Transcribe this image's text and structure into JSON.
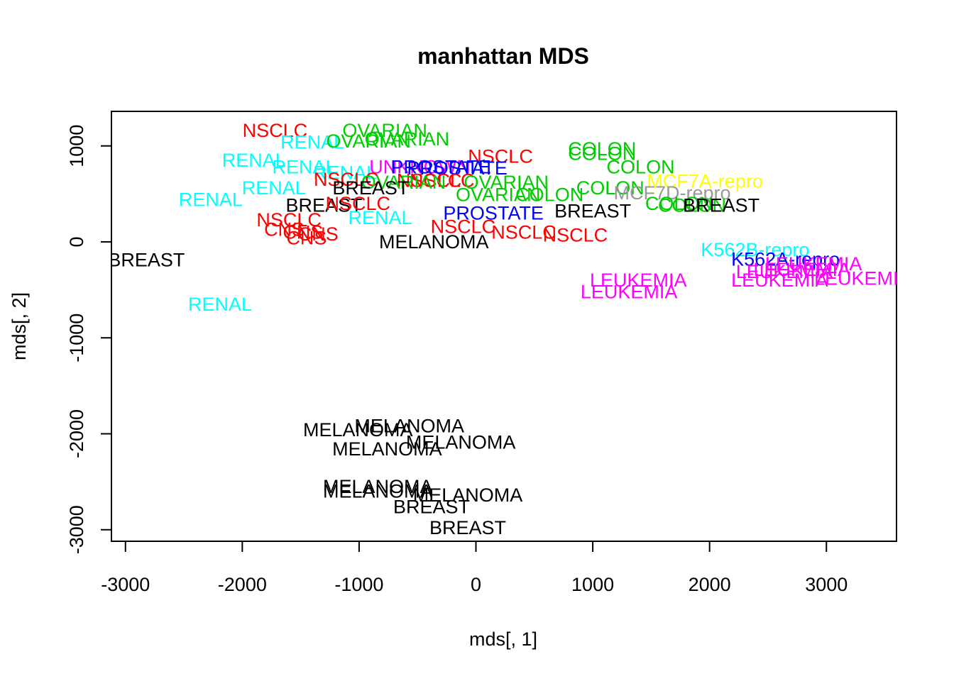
{
  "chart_data": {
    "type": "scatter",
    "title": "manhattan MDS",
    "xlabel": "mds[, 1]",
    "ylabel": "mds[, 2]",
    "xlim": [
      -3120,
      3600
    ],
    "ylim": [
      -3120,
      1360
    ],
    "xticks": [
      -3000,
      -2000,
      -1000,
      0,
      1000,
      2000,
      3000
    ],
    "yticks": [
      -3000,
      -2000,
      -1000,
      0,
      1000
    ],
    "xtick_labels": [
      "-3000",
      "-2000",
      "-1000",
      "0",
      "1000",
      "2000",
      "3000"
    ],
    "ytick_labels": [
      "-3000",
      "-2000",
      "-1000",
      "0",
      "1000"
    ],
    "grid": false,
    "legend": "none",
    "colors": {
      "BREAST": "#000000",
      "MELANOMA": "#000000",
      "NSCLC": "#ff0000",
      "CNS": "#ff0000",
      "RENAL": "#00ffff",
      "OVARIAN": "#00cd00",
      "COLON": "#00cd00",
      "UNKNOWN": "#ff00ff",
      "LEUKEMIA": "#ff00ff",
      "PROSTATE": "#0000ff",
      "K562A-repro": "#0000ff",
      "K562B-repro": "#00ffff",
      "MCF7A-repro": "#ffff00",
      "MCF7D-repro": "#999999"
    },
    "points": [
      {
        "label": "NSCLC",
        "x": -1720,
        "y": 1160
      },
      {
        "label": "OVARIAN",
        "x": -780,
        "y": 1160
      },
      {
        "label": "RENAL",
        "x": -1400,
        "y": 1040
      },
      {
        "label": "OVARIAN",
        "x": -920,
        "y": 1050
      },
      {
        "label": "OVARIAN",
        "x": -590,
        "y": 1070
      },
      {
        "label": "COLON",
        "x": 1080,
        "y": 970
      },
      {
        "label": "COLON",
        "x": 1080,
        "y": 920
      },
      {
        "label": "NSCLC",
        "x": 210,
        "y": 890
      },
      {
        "label": "RENAL",
        "x": -1900,
        "y": 850
      },
      {
        "label": "RENAL",
        "x": -1470,
        "y": 780
      },
      {
        "label": "RENAL",
        "x": -1120,
        "y": 720
      },
      {
        "label": "UNKNOWN",
        "x": -480,
        "y": 780
      },
      {
        "label": "PROSTATE",
        "x": -300,
        "y": 780
      },
      {
        "label": "PROSTATE",
        "x": -160,
        "y": 770
      },
      {
        "label": "COLON",
        "x": 1410,
        "y": 780
      },
      {
        "label": "NSCLC",
        "x": -1110,
        "y": 650
      },
      {
        "label": "NSCLC",
        "x": -400,
        "y": 640
      },
      {
        "label": "NSCLC",
        "x": -290,
        "y": 640
      },
      {
        "label": "OVARIAN",
        "x": -620,
        "y": 620
      },
      {
        "label": "OVARIAN",
        "x": 260,
        "y": 620
      },
      {
        "label": "MCF7A-repro",
        "x": 1960,
        "y": 630
      },
      {
        "label": "RENAL",
        "x": -1730,
        "y": 560
      },
      {
        "label": "BREAST",
        "x": -900,
        "y": 560
      },
      {
        "label": "COLON",
        "x": 1150,
        "y": 560
      },
      {
        "label": "OVARIAN",
        "x": 190,
        "y": 490
      },
      {
        "label": "COLON",
        "x": 630,
        "y": 490
      },
      {
        "label": "MCF7D-repro",
        "x": 1680,
        "y": 510
      },
      {
        "label": "COLON",
        "x": 1740,
        "y": 400
      },
      {
        "label": "COLON",
        "x": 1850,
        "y": 380
      },
      {
        "label": "RENAL",
        "x": -2270,
        "y": 440
      },
      {
        "label": "BREAST",
        "x": -1300,
        "y": 380
      },
      {
        "label": "NSCLC",
        "x": -1010,
        "y": 400
      },
      {
        "label": "BREAST",
        "x": 1000,
        "y": 320
      },
      {
        "label": "BREAST",
        "x": 2100,
        "y": 380
      },
      {
        "label": "PROSTATE",
        "x": 150,
        "y": 300
      },
      {
        "label": "RENAL",
        "x": -820,
        "y": 250
      },
      {
        "label": "NSCLC",
        "x": -1600,
        "y": 230
      },
      {
        "label": "NSCLC",
        "x": -110,
        "y": 160
      },
      {
        "label": "CNS",
        "x": -1640,
        "y": 130
      },
      {
        "label": "CNS",
        "x": -1480,
        "y": 100
      },
      {
        "label": "CNS",
        "x": -1350,
        "y": 80
      },
      {
        "label": "CNS",
        "x": -1450,
        "y": 40
      },
      {
        "label": "NSCLC",
        "x": 410,
        "y": 100
      },
      {
        "label": "NSCLC",
        "x": 850,
        "y": 70
      },
      {
        "label": "MELANOMA",
        "x": -360,
        "y": 0
      },
      {
        "label": "BREAST",
        "x": -2820,
        "y": -190
      },
      {
        "label": "K562B-repro",
        "x": 2390,
        "y": -80
      },
      {
        "label": "K562A-repro",
        "x": 2650,
        "y": -180
      },
      {
        "label": "LEUKEMIA",
        "x": 2890,
        "y": -230
      },
      {
        "label": "LEUKEMIA",
        "x": 2790,
        "y": -290
      },
      {
        "label": "LEUKEMIA",
        "x": 2640,
        "y": -310
      },
      {
        "label": "LEUKEMIA",
        "x": 3310,
        "y": -380
      },
      {
        "label": "LEUKEMIA",
        "x": 2600,
        "y": -400
      },
      {
        "label": "LEUKEMIA",
        "x": 1390,
        "y": -400
      },
      {
        "label": "LEUKEMIA",
        "x": 1310,
        "y": -520
      },
      {
        "label": "RENAL",
        "x": -2190,
        "y": -650
      },
      {
        "label": "MELANOMA",
        "x": -570,
        "y": -1920
      },
      {
        "label": "MELANOMA",
        "x": -1010,
        "y": -1960
      },
      {
        "label": "MELANOMA",
        "x": -130,
        "y": -2090
      },
      {
        "label": "MELANOMA",
        "x": -760,
        "y": -2160
      },
      {
        "label": "MELANOMA",
        "x": -840,
        "y": -2550
      },
      {
        "label": "MELANOMA",
        "x": -840,
        "y": -2600
      },
      {
        "label": "MELANOMA",
        "x": -70,
        "y": -2640
      },
      {
        "label": "BREAST",
        "x": -380,
        "y": -2760
      },
      {
        "label": "BREAST",
        "x": -70,
        "y": -2980
      }
    ]
  }
}
